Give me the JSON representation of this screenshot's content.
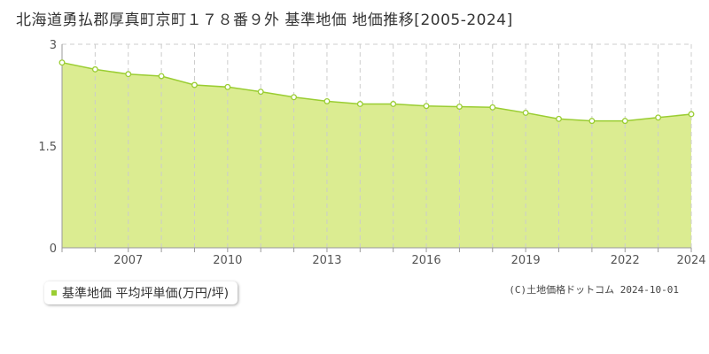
{
  "title": "北海道勇払郡厚真町京町１７８番９外 基準地価 地価推移[2005-2024]",
  "legend_label": "基準地価 平均坪単価(万円/坪)",
  "copyright": "(C)土地価格ドットコム 2024-10-01",
  "colors": {
    "fill": "#dbec91",
    "line": "#9acd32",
    "grid": "#cccccc",
    "axis": "#999999"
  },
  "chart_data": {
    "type": "area",
    "title": "北海道勇払郡厚真町京町１７８番９外 基準地価 地価推移[2005-2024]",
    "xlabel": "",
    "ylabel": "",
    "x": [
      2005,
      2006,
      2007,
      2008,
      2009,
      2010,
      2011,
      2012,
      2013,
      2014,
      2015,
      2016,
      2017,
      2018,
      2019,
      2020,
      2021,
      2022,
      2023,
      2024
    ],
    "series": [
      {
        "name": "基準地価 平均坪単価(万円/坪)",
        "values": [
          2.73,
          2.63,
          2.56,
          2.53,
          2.4,
          2.37,
          2.3,
          2.22,
          2.16,
          2.12,
          2.12,
          2.09,
          2.08,
          2.07,
          1.99,
          1.9,
          1.87,
          1.87,
          1.92,
          1.97
        ]
      }
    ],
    "xlim": [
      2005,
      2024
    ],
    "ylim": [
      0,
      3
    ],
    "y_ticks": [
      "0",
      "1.5",
      "3"
    ],
    "x_tick_labels": [
      "2007",
      "2010",
      "2013",
      "2016",
      "2019",
      "2022",
      "2024"
    ],
    "x_tick_years": [
      2007,
      2010,
      2013,
      2016,
      2019,
      2022,
      2024
    ],
    "grid": true,
    "legend_position": "bottom-left"
  }
}
